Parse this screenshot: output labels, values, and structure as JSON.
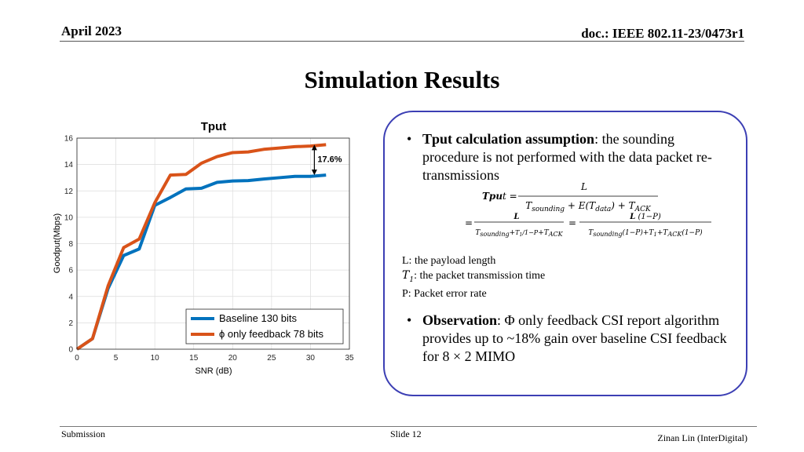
{
  "header": {
    "date": "April 2023",
    "doc": "doc.: IEEE 802.11-23/0473r1"
  },
  "slide_title": "Simulation Results",
  "chart_data": {
    "type": "line",
    "title": "Tput",
    "xlabel": "SNR (dB)",
    "ylabel": "Goodput(Mbps)",
    "xlim": [
      0,
      35
    ],
    "ylim": [
      0,
      16
    ],
    "xticks": [
      0,
      5,
      10,
      15,
      20,
      25,
      30,
      35
    ],
    "yticks": [
      0,
      2,
      4,
      6,
      8,
      10,
      12,
      14,
      16
    ],
    "grid": true,
    "legend_position": "bottom-right",
    "x": [
      0,
      2,
      4,
      6,
      8,
      10,
      12,
      14,
      16,
      18,
      20,
      22,
      24,
      26,
      28,
      30,
      32
    ],
    "series": [
      {
        "name": "Baseline 130 bits",
        "color": "#0072bd",
        "values": [
          0,
          0.8,
          4.6,
          7.1,
          7.6,
          10.9,
          11.5,
          12.15,
          12.2,
          12.65,
          12.75,
          12.78,
          12.9,
          13.0,
          13.1,
          13.1,
          13.2
        ]
      },
      {
        "name": "ϕ only feedback 78 bits",
        "color": "#d95319",
        "values": [
          0,
          0.8,
          4.8,
          7.7,
          8.35,
          11.1,
          13.2,
          13.25,
          14.1,
          14.6,
          14.9,
          14.95,
          15.15,
          15.25,
          15.35,
          15.4,
          15.5
        ]
      }
    ],
    "annotation": {
      "text": "17.6%",
      "x": 30.5,
      "y_low": 13.2,
      "y_high": 15.5
    }
  },
  "panel": {
    "bullet1_head": "Tput calculation assumption",
    "bullet1_body": ": the sounding procedure is not performed with the data packet re-transmissions",
    "defs": [
      "L: the payload length",
      ": the packet transmission time",
      "P: Packet error rate"
    ],
    "bullet2_head": "Observation",
    "bullet2_body": ": Φ only feedback CSI report algorithm provides up to ~18% gain over baseline CSI feedback for 8 × 2 MIMO"
  },
  "footer": {
    "left": "Submission",
    "mid": "Slide 12",
    "right": "Zinan Lin (InterDigital)"
  }
}
